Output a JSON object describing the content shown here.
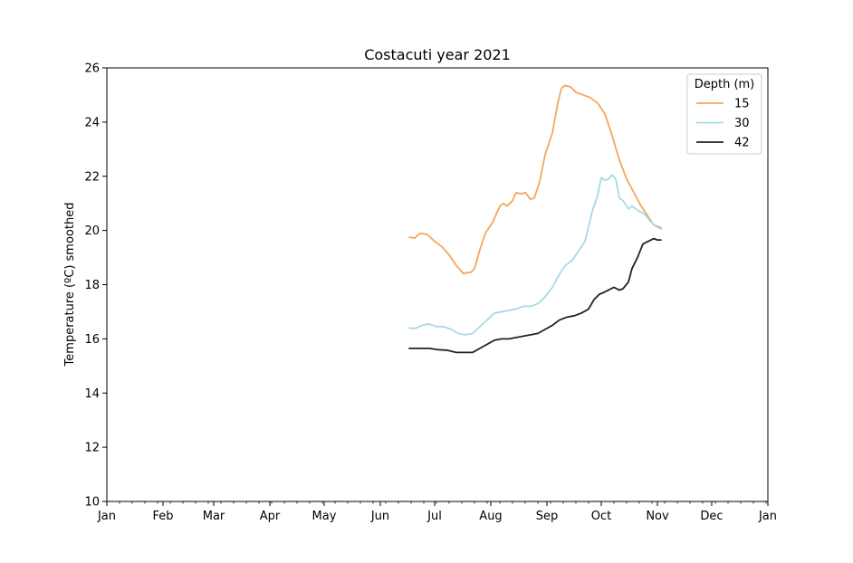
{
  "chart_data": {
    "type": "line",
    "title": "Costacuti year 2021",
    "xlabel": "",
    "ylabel": "Temperature (ºC) smoothed",
    "xlim": [
      "2021-01-01",
      "2022-01-01"
    ],
    "ylim": [
      10,
      26
    ],
    "x_ticks": [
      {
        "date": "2021-01-01",
        "label": "Jan"
      },
      {
        "date": "2021-02-01",
        "label": "Feb"
      },
      {
        "date": "2021-03-01",
        "label": "Mar"
      },
      {
        "date": "2021-04-01",
        "label": "Apr"
      },
      {
        "date": "2021-05-01",
        "label": "May"
      },
      {
        "date": "2021-06-01",
        "label": "Jun"
      },
      {
        "date": "2021-07-01",
        "label": "Jul"
      },
      {
        "date": "2021-08-01",
        "label": "Aug"
      },
      {
        "date": "2021-09-01",
        "label": "Sep"
      },
      {
        "date": "2021-10-01",
        "label": "Oct"
      },
      {
        "date": "2021-11-01",
        "label": "Nov"
      },
      {
        "date": "2021-12-01",
        "label": "Dec"
      },
      {
        "date": "2022-01-01",
        "label": "Jan"
      }
    ],
    "y_ticks": [
      10,
      12,
      14,
      16,
      18,
      20,
      22,
      24,
      26
    ],
    "grid": false,
    "legend": {
      "title": "Depth (m)",
      "position": "top-right"
    },
    "series": [
      {
        "name": "15",
        "color": "#f5a65b",
        "points": [
          [
            "2021-06-17",
            19.75
          ],
          [
            "2021-06-20",
            19.72
          ],
          [
            "2021-06-23",
            19.9
          ],
          [
            "2021-06-27",
            19.85
          ],
          [
            "2021-07-01",
            19.6
          ],
          [
            "2021-07-05",
            19.4
          ],
          [
            "2021-07-09",
            19.1
          ],
          [
            "2021-07-13",
            18.7
          ],
          [
            "2021-07-17",
            18.4
          ],
          [
            "2021-07-19",
            18.45
          ],
          [
            "2021-07-21",
            18.45
          ],
          [
            "2021-07-23",
            18.6
          ],
          [
            "2021-07-26",
            19.3
          ],
          [
            "2021-07-29",
            19.9
          ],
          [
            "2021-08-02",
            20.3
          ],
          [
            "2021-08-06",
            20.9
          ],
          [
            "2021-08-08",
            21.0
          ],
          [
            "2021-08-10",
            20.9
          ],
          [
            "2021-08-13",
            21.1
          ],
          [
            "2021-08-15",
            21.4
          ],
          [
            "2021-08-18",
            21.35
          ],
          [
            "2021-08-20",
            21.4
          ],
          [
            "2021-08-23",
            21.15
          ],
          [
            "2021-08-25",
            21.2
          ],
          [
            "2021-08-28",
            21.8
          ],
          [
            "2021-08-31",
            22.8
          ],
          [
            "2021-09-04",
            23.6
          ],
          [
            "2021-09-07",
            24.7
          ],
          [
            "2021-09-09",
            25.25
          ],
          [
            "2021-09-11",
            25.35
          ],
          [
            "2021-09-14",
            25.3
          ],
          [
            "2021-09-17",
            25.1
          ],
          [
            "2021-09-21",
            25.0
          ],
          [
            "2021-09-25",
            24.9
          ],
          [
            "2021-09-29",
            24.7
          ],
          [
            "2021-10-03",
            24.3
          ],
          [
            "2021-10-07",
            23.5
          ],
          [
            "2021-10-11",
            22.6
          ],
          [
            "2021-10-15",
            21.9
          ],
          [
            "2021-10-19",
            21.4
          ],
          [
            "2021-10-23",
            20.9
          ],
          [
            "2021-10-27",
            20.5
          ],
          [
            "2021-10-30",
            20.2
          ],
          [
            "2021-11-03",
            20.1
          ]
        ]
      },
      {
        "name": "30",
        "color": "#a8d8e6",
        "points": [
          [
            "2021-06-17",
            16.4
          ],
          [
            "2021-06-20",
            16.38
          ],
          [
            "2021-06-24",
            16.5
          ],
          [
            "2021-06-28",
            16.55
          ],
          [
            "2021-07-02",
            16.45
          ],
          [
            "2021-07-06",
            16.45
          ],
          [
            "2021-07-10",
            16.35
          ],
          [
            "2021-07-14",
            16.2
          ],
          [
            "2021-07-18",
            16.15
          ],
          [
            "2021-07-22",
            16.2
          ],
          [
            "2021-07-26",
            16.45
          ],
          [
            "2021-07-30",
            16.7
          ],
          [
            "2021-08-03",
            16.95
          ],
          [
            "2021-08-07",
            17.0
          ],
          [
            "2021-08-11",
            17.05
          ],
          [
            "2021-08-15",
            17.1
          ],
          [
            "2021-08-19",
            17.2
          ],
          [
            "2021-08-23",
            17.2
          ],
          [
            "2021-08-27",
            17.3
          ],
          [
            "2021-08-31",
            17.55
          ],
          [
            "2021-09-04",
            17.9
          ],
          [
            "2021-09-08",
            18.4
          ],
          [
            "2021-09-11",
            18.7
          ],
          [
            "2021-09-15",
            18.9
          ],
          [
            "2021-09-18",
            19.2
          ],
          [
            "2021-09-22",
            19.6
          ],
          [
            "2021-09-26",
            20.7
          ],
          [
            "2021-09-29",
            21.3
          ],
          [
            "2021-10-01",
            21.95
          ],
          [
            "2021-10-03",
            21.85
          ],
          [
            "2021-10-05",
            21.9
          ],
          [
            "2021-10-07",
            22.05
          ],
          [
            "2021-10-09",
            21.9
          ],
          [
            "2021-10-11",
            21.2
          ],
          [
            "2021-10-13",
            21.1
          ],
          [
            "2021-10-16",
            20.8
          ],
          [
            "2021-10-18",
            20.9
          ],
          [
            "2021-10-21",
            20.75
          ],
          [
            "2021-10-25",
            20.6
          ],
          [
            "2021-10-28",
            20.35
          ],
          [
            "2021-10-31",
            20.15
          ],
          [
            "2021-11-03",
            20.05
          ]
        ]
      },
      {
        "name": "42",
        "color": "#222222",
        "points": [
          [
            "2021-06-17",
            15.65
          ],
          [
            "2021-06-22",
            15.65
          ],
          [
            "2021-06-28",
            15.65
          ],
          [
            "2021-07-03",
            15.6
          ],
          [
            "2021-07-08",
            15.58
          ],
          [
            "2021-07-13",
            15.5
          ],
          [
            "2021-07-18",
            15.5
          ],
          [
            "2021-07-22",
            15.5
          ],
          [
            "2021-07-26",
            15.65
          ],
          [
            "2021-07-30",
            15.8
          ],
          [
            "2021-08-03",
            15.95
          ],
          [
            "2021-08-07",
            16.0
          ],
          [
            "2021-08-11",
            16.0
          ],
          [
            "2021-08-15",
            16.05
          ],
          [
            "2021-08-19",
            16.1
          ],
          [
            "2021-08-23",
            16.15
          ],
          [
            "2021-08-27",
            16.2
          ],
          [
            "2021-08-31",
            16.35
          ],
          [
            "2021-09-04",
            16.5
          ],
          [
            "2021-09-08",
            16.7
          ],
          [
            "2021-09-12",
            16.8
          ],
          [
            "2021-09-16",
            16.85
          ],
          [
            "2021-09-20",
            16.95
          ],
          [
            "2021-09-24",
            17.1
          ],
          [
            "2021-09-27",
            17.45
          ],
          [
            "2021-09-30",
            17.65
          ],
          [
            "2021-10-02",
            17.7
          ],
          [
            "2021-10-05",
            17.8
          ],
          [
            "2021-10-08",
            17.9
          ],
          [
            "2021-10-11",
            17.8
          ],
          [
            "2021-10-13",
            17.85
          ],
          [
            "2021-10-16",
            18.1
          ],
          [
            "2021-10-18",
            18.6
          ],
          [
            "2021-10-21",
            19.0
          ],
          [
            "2021-10-24",
            19.5
          ],
          [
            "2021-10-27",
            19.6
          ],
          [
            "2021-10-30",
            19.7
          ],
          [
            "2021-11-01",
            19.65
          ],
          [
            "2021-11-03",
            19.65
          ]
        ]
      }
    ]
  }
}
